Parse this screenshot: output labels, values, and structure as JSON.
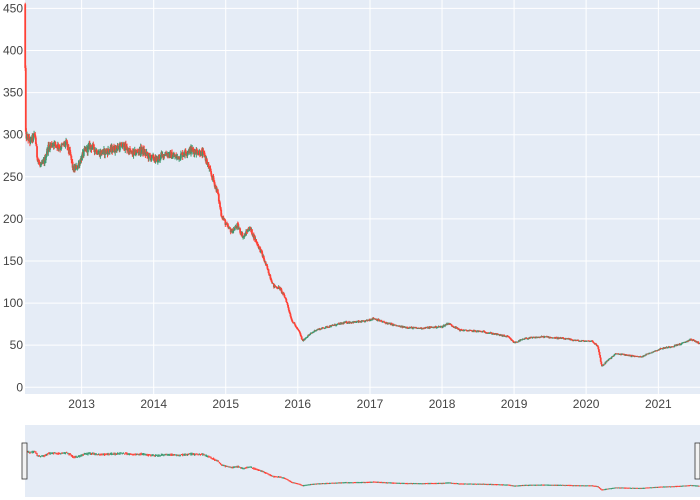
{
  "chart_data": {
    "type": "candlestick",
    "title": "",
    "xlabel": "",
    "ylabel": "",
    "x_range": [
      "2012-03-20",
      "2021-07-31"
    ],
    "y_range": [
      -8,
      460
    ],
    "y_ticks": [
      0,
      50,
      100,
      150,
      200,
      250,
      300,
      350,
      400,
      450
    ],
    "x_ticks": [
      {
        "label": "2013",
        "date": "2013-01-01"
      },
      {
        "label": "2014",
        "date": "2014-01-01"
      },
      {
        "label": "2015",
        "date": "2015-01-01"
      },
      {
        "label": "2016",
        "date": "2016-01-01"
      },
      {
        "label": "2017",
        "date": "2017-01-01"
      },
      {
        "label": "2018",
        "date": "2018-01-01"
      },
      {
        "label": "2019",
        "date": "2019-01-01"
      },
      {
        "label": "2020",
        "date": "2020-01-01"
      },
      {
        "label": "2021",
        "date": "2021-01-01"
      }
    ],
    "grid": true,
    "rangeslider": true,
    "increasing_color": "#3D9970",
    "decreasing_color": "#FF4136",
    "plot_bg": "#E5ECF6",
    "grid_color": "#FFFFFF",
    "price_path": [
      [
        "2012-03-20",
        455
      ],
      [
        "2012-03-22",
        300
      ],
      [
        "2012-04-15",
        292
      ],
      [
        "2012-05-10",
        300
      ],
      [
        "2012-05-20",
        275
      ],
      [
        "2012-06-05",
        262
      ],
      [
        "2012-06-25",
        268
      ],
      [
        "2012-07-15",
        285
      ],
      [
        "2012-08-10",
        290
      ],
      [
        "2012-09-15",
        285
      ],
      [
        "2012-10-15",
        290
      ],
      [
        "2012-11-05",
        275
      ],
      [
        "2012-11-20",
        258
      ],
      [
        "2012-12-10",
        262
      ],
      [
        "2013-01-15",
        280
      ],
      [
        "2013-02-15",
        287
      ],
      [
        "2013-04-01",
        278
      ],
      [
        "2013-06-01",
        282
      ],
      [
        "2013-08-01",
        287
      ],
      [
        "2013-09-15",
        277
      ],
      [
        "2013-11-01",
        282
      ],
      [
        "2013-12-01",
        275
      ],
      [
        "2014-01-15",
        270
      ],
      [
        "2014-03-01",
        278
      ],
      [
        "2014-05-01",
        273
      ],
      [
        "2014-07-01",
        282
      ],
      [
        "2014-08-15",
        280
      ],
      [
        "2014-09-15",
        276
      ],
      [
        "2014-10-15",
        255
      ],
      [
        "2014-11-01",
        245
      ],
      [
        "2014-11-20",
        232
      ],
      [
        "2014-12-10",
        205
      ],
      [
        "2015-01-10",
        190
      ],
      [
        "2015-02-01",
        185
      ],
      [
        "2015-03-01",
        192
      ],
      [
        "2015-04-01",
        178
      ],
      [
        "2015-05-01",
        190
      ],
      [
        "2015-06-01",
        175
      ],
      [
        "2015-07-01",
        160
      ],
      [
        "2015-08-01",
        140
      ],
      [
        "2015-09-01",
        120
      ],
      [
        "2015-10-01",
        118
      ],
      [
        "2015-11-01",
        105
      ],
      [
        "2015-12-01",
        80
      ],
      [
        "2016-01-10",
        65
      ],
      [
        "2016-01-25",
        55
      ],
      [
        "2016-02-15",
        60
      ],
      [
        "2016-04-01",
        68
      ],
      [
        "2016-06-01",
        72
      ],
      [
        "2016-09-01",
        77
      ],
      [
        "2016-12-01",
        78
      ],
      [
        "2017-01-20",
        82
      ],
      [
        "2017-03-01",
        78
      ],
      [
        "2017-06-01",
        72
      ],
      [
        "2017-09-01",
        70
      ],
      [
        "2018-01-01",
        72
      ],
      [
        "2018-02-01",
        76
      ],
      [
        "2018-04-01",
        68
      ],
      [
        "2018-08-01",
        66
      ],
      [
        "2018-12-01",
        60
      ],
      [
        "2019-01-01",
        53
      ],
      [
        "2019-03-01",
        58
      ],
      [
        "2019-06-01",
        60
      ],
      [
        "2019-09-01",
        58
      ],
      [
        "2019-12-01",
        55
      ],
      [
        "2020-02-01",
        55
      ],
      [
        "2020-03-01",
        48
      ],
      [
        "2020-03-20",
        25
      ],
      [
        "2020-04-20",
        32
      ],
      [
        "2020-06-01",
        40
      ],
      [
        "2020-08-01",
        38
      ],
      [
        "2020-10-01",
        36
      ],
      [
        "2020-12-01",
        42
      ],
      [
        "2021-01-15",
        46
      ],
      [
        "2021-03-01",
        48
      ],
      [
        "2021-05-01",
        52
      ],
      [
        "2021-06-15",
        57
      ],
      [
        "2021-07-31",
        52
      ]
    ]
  }
}
